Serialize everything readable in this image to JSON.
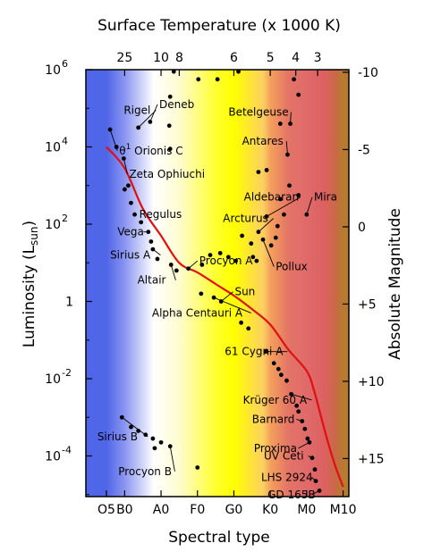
{
  "chart_data": {
    "type": "scatter",
    "title": "",
    "top_axis": {
      "title": "Surface Temperature (x 1000 K)",
      "ticks": [
        {
          "label": "25",
          "type": "B0"
        },
        {
          "label": "10",
          "type": "A0"
        },
        {
          "label": "8",
          "type": "A5"
        },
        {
          "label": "6",
          "type": "G0"
        },
        {
          "label": "5",
          "type": "K0"
        },
        {
          "label": "4",
          "type": "K7"
        },
        {
          "label": "3",
          "type": "M3"
        }
      ]
    },
    "bottom_axis": {
      "title": "Spectral type",
      "ticks": [
        "O5",
        "B0",
        "A0",
        "F0",
        "G0",
        "K0",
        "M0",
        "M10"
      ]
    },
    "left_axis": {
      "title": "Luminosity (L",
      "title_subscript": "sun",
      "title_close": ")",
      "scale": "log",
      "ylim_log10": [
        -5,
        6
      ],
      "ticks": [
        {
          "mantissa": "10",
          "exp": "6",
          "log10": 6
        },
        {
          "mantissa": "10",
          "exp": "4",
          "log10": 4
        },
        {
          "mantissa": "10",
          "exp": "2",
          "log10": 2
        },
        {
          "mantissa": "1",
          "exp": "",
          "log10": 0
        },
        {
          "mantissa": "10",
          "exp": "-2",
          "log10": -2
        },
        {
          "mantissa": "10",
          "exp": "-4",
          "log10": -4
        }
      ]
    },
    "right_axis": {
      "title": "Absolute Magnitude",
      "ticks": [
        {
          "label": "-10",
          "mag": -10
        },
        {
          "label": "-5",
          "mag": -5
        },
        {
          "label": "0",
          "mag": 0
        },
        {
          "label": "+5",
          "mag": 5
        },
        {
          "label": "+10",
          "mag": 10
        },
        {
          "label": "+15",
          "mag": 15
        }
      ]
    },
    "background_gradient": [
      {
        "type": "O5",
        "color": "#5066e8"
      },
      {
        "type": "B0",
        "color": "#8a95f0"
      },
      {
        "type": "B8",
        "color": "#ffffff"
      },
      {
        "type": "A5",
        "color": "#fffbd0"
      },
      {
        "type": "F5",
        "color": "#ffff30"
      },
      {
        "type": "G0",
        "color": "#ffff00"
      },
      {
        "type": "G8",
        "color": "#fcd060"
      },
      {
        "type": "K0",
        "color": "#f4a05c"
      },
      {
        "type": "K5",
        "color": "#e37466"
      },
      {
        "type": "M0",
        "color": "#e06a6a"
      },
      {
        "type": "M5",
        "color": "#dd6060"
      },
      {
        "type": "M8",
        "color": "#c86a46"
      },
      {
        "type": "M10",
        "color": "#b87a30"
      }
    ],
    "main_sequence_color": "#e01010",
    "main_sequence": [
      {
        "type": "O5",
        "logL": 4.0
      },
      {
        "type": "B0",
        "logL": 3.45
      },
      {
        "type": "B5",
        "logL": 2.4
      },
      {
        "type": "A0",
        "logL": 1.7
      },
      {
        "type": "A5",
        "logL": 1.0
      },
      {
        "type": "F0",
        "logL": 0.75
      },
      {
        "type": "F5",
        "logL": 0.45
      },
      {
        "type": "G0",
        "logL": 0.15
      },
      {
        "type": "G5",
        "logL": -0.2
      },
      {
        "type": "K0",
        "logL": -0.6
      },
      {
        "type": "K5",
        "logL": -1.25
      },
      {
        "type": "M0",
        "logL": -1.8
      },
      {
        "type": "M2",
        "logL": -2.3
      },
      {
        "type": "M4",
        "logL": -3.0
      },
      {
        "type": "M6",
        "logL": -3.7
      },
      {
        "type": "M8",
        "logL": -4.3
      },
      {
        "type": "M10",
        "logL": -4.8
      }
    ],
    "stars": [
      {
        "x": 0.2,
        "y": 4.45,
        "label": "θ1 Orionis C",
        "label_parts": [
          "θ",
          "1",
          " Orionis C"
        ],
        "label_x": 0.7,
        "label_y": 3.9,
        "leader": true
      },
      {
        "x": 0.55,
        "y": 4.0,
        "label": "",
        "leader": false
      },
      {
        "x": 0.95,
        "y": 3.7,
        "label": "Zeta Ophiuchi",
        "label_x": 1.25,
        "label_y": 3.3,
        "leader": true
      },
      {
        "x": 1.75,
        "y": 4.5,
        "label": "Rigel",
        "label_x": 0.95,
        "label_y": 4.95,
        "leader": true
      },
      {
        "x": 2.4,
        "y": 4.65,
        "label": "Deneb",
        "label_x": 2.9,
        "label_y": 5.1,
        "leader": true
      },
      {
        "x": 1.0,
        "y": 2.9,
        "label": "",
        "leader": false
      },
      {
        "x": 1.2,
        "y": 3.0,
        "label": "",
        "leader": false
      },
      {
        "x": 1.35,
        "y": 2.55,
        "label": "",
        "leader": false
      },
      {
        "x": 1.55,
        "y": 2.25,
        "label": "Regulus",
        "label_x": 1.8,
        "label_y": 2.25,
        "leader": false
      },
      {
        "x": 1.9,
        "y": 2.05,
        "label": "",
        "leader": false
      },
      {
        "x": 2.3,
        "y": 1.8,
        "label": "Vega",
        "label_x": 0.6,
        "label_y": 1.8,
        "leader": true
      },
      {
        "x": 2.55,
        "y": 1.35,
        "label": "Sirius A",
        "label_x": 0.2,
        "label_y": 1.2,
        "leader": true
      },
      {
        "x": 2.45,
        "y": 1.55,
        "label": "",
        "leader": false
      },
      {
        "x": 2.8,
        "y": 1.1,
        "label": "",
        "leader": false
      },
      {
        "x": 3.55,
        "y": 0.95,
        "label": "Altair",
        "label_x": 1.7,
        "label_y": 0.55,
        "leader": true
      },
      {
        "x": 3.85,
        "y": 0.8,
        "label": "",
        "leader": false
      },
      {
        "x": 4.5,
        "y": 0.85,
        "label": "Procyon A",
        "label_x": 5.1,
        "label_y": 1.05,
        "leader": true
      },
      {
        "x": 5.2,
        "y": 0.2,
        "label": "",
        "leader": false
      },
      {
        "x": 5.9,
        "y": 0.1,
        "label": "Alpha Centauri A",
        "label_x": 2.5,
        "label_y": -0.3,
        "leader": true
      },
      {
        "x": 6.3,
        "y": 0.0,
        "label": "Sun",
        "label_x": 7.05,
        "label_y": 0.25,
        "leader": true
      },
      {
        "x": 7.4,
        "y": -0.55,
        "label": "",
        "leader": false
      },
      {
        "x": 7.8,
        "y": -0.7,
        "label": "",
        "leader": false
      },
      {
        "x": 8.75,
        "y": -1.3,
        "label": "61 Cygni A",
        "label_x": 6.5,
        "label_y": -1.3,
        "leader": true
      },
      {
        "x": 9.2,
        "y": -1.6,
        "label": "",
        "leader": false
      },
      {
        "x": 9.6,
        "y": -1.9,
        "label": "",
        "leader": false
      },
      {
        "x": 9.9,
        "y": -2.05,
        "label": "",
        "leader": false
      },
      {
        "x": 10.15,
        "y": -2.4,
        "label": "Krüger 60 A",
        "label_x": 7.5,
        "label_y": -2.55,
        "leader": true
      },
      {
        "x": 10.45,
        "y": -2.7,
        "label": "",
        "leader": false
      },
      {
        "x": 10.75,
        "y": -3.1,
        "label": "Barnard",
        "label_x": 8.0,
        "label_y": -3.05,
        "leader": true
      },
      {
        "x": 10.9,
        "y": -3.3,
        "label": "",
        "leader": false
      },
      {
        "x": 11.15,
        "y": -3.65,
        "label": "Proxima",
        "label_x": 8.1,
        "label_y": -3.8,
        "leader": true
      },
      {
        "x": 11.3,
        "y": -4.05,
        "label": "UV Ceti",
        "label_x": 8.65,
        "label_y": -4.0,
        "leader": true
      },
      {
        "x": 11.45,
        "y": -4.35,
        "label": "",
        "leader": false
      },
      {
        "x": 11.5,
        "y": -4.65,
        "label": "LHS 2924",
        "label_x": 8.5,
        "label_y": -4.55,
        "leader": true
      },
      {
        "x": 11.7,
        "y": -4.9,
        "label": "GD 165B",
        "label_x": 8.85,
        "label_y": -5.0,
        "leader": true
      },
      {
        "x": 11.05,
        "y": -3.55,
        "label": "",
        "leader": false
      },
      {
        "x": 10.55,
        "y": -2.85,
        "label": "",
        "leader": false
      },
      {
        "x": 9.45,
        "y": -1.75,
        "label": "",
        "leader": false
      },
      {
        "x": 3.7,
        "y": 5.95,
        "label": "",
        "leader": false
      },
      {
        "x": 5.05,
        "y": 5.75,
        "label": "",
        "leader": false
      },
      {
        "x": 6.1,
        "y": 5.75,
        "label": "",
        "leader": false
      },
      {
        "x": 7.25,
        "y": 5.95,
        "label": "",
        "leader": false
      },
      {
        "x": 10.3,
        "y": 5.75,
        "label": "",
        "leader": false
      },
      {
        "x": 10.55,
        "y": 5.35,
        "label": "",
        "leader": false
      },
      {
        "x": 3.5,
        "y": 5.3,
        "label": "",
        "leader": false
      },
      {
        "x": 3.45,
        "y": 4.55,
        "label": "",
        "leader": false
      },
      {
        "x": 3.5,
        "y": 3.95,
        "label": "",
        "leader": false
      },
      {
        "x": 9.55,
        "y": 4.6,
        "label": "",
        "leader": false
      },
      {
        "x": 10.1,
        "y": 4.6,
        "label": "Betelgeuse",
        "label_x": 6.7,
        "label_y": 4.9,
        "leader": true
      },
      {
        "x": 9.95,
        "y": 3.8,
        "label": "Antares",
        "label_x": 7.45,
        "label_y": 4.15,
        "leader": true
      },
      {
        "x": 8.35,
        "y": 3.35,
        "label": "",
        "leader": false
      },
      {
        "x": 8.8,
        "y": 3.4,
        "label": "",
        "leader": false
      },
      {
        "x": 10.05,
        "y": 3.0,
        "label": "",
        "leader": false
      },
      {
        "x": 10.55,
        "y": 2.75,
        "label": "",
        "leader": false
      },
      {
        "x": 11.0,
        "y": 2.25,
        "label": "Mira",
        "label_x": 11.4,
        "label_y": 2.7,
        "leader": true
      },
      {
        "x": 9.55,
        "y": 2.65,
        "label": "",
        "leader": false
      },
      {
        "x": 9.75,
        "y": 2.25,
        "label": "",
        "leader": false
      },
      {
        "x": 8.8,
        "y": 2.2,
        "label": "Aldebaran",
        "label_x": 7.55,
        "label_y": 2.7,
        "leader": true
      },
      {
        "x": 9.4,
        "y": 1.95,
        "label": "",
        "leader": false
      },
      {
        "x": 8.35,
        "y": 1.8,
        "label": "Arcturus",
        "label_x": 6.4,
        "label_y": 2.15,
        "leader": true
      },
      {
        "x": 8.6,
        "y": 1.6,
        "label": "Pollux",
        "label_x": 9.3,
        "label_y": 0.9,
        "leader": true
      },
      {
        "x": 9.05,
        "y": 1.45,
        "label": "",
        "leader": false
      },
      {
        "x": 9.3,
        "y": 1.65,
        "label": "",
        "leader": false
      },
      {
        "x": 7.45,
        "y": 1.7,
        "label": "",
        "leader": false
      },
      {
        "x": 7.95,
        "y": 1.5,
        "label": "",
        "leader": false
      },
      {
        "x": 7.1,
        "y": 1.05,
        "label": "",
        "leader": false
      },
      {
        "x": 6.7,
        "y": 1.15,
        "label": "",
        "leader": false
      },
      {
        "x": 6.25,
        "y": 1.25,
        "label": "",
        "leader": false
      },
      {
        "x": 5.7,
        "y": 1.2,
        "label": "",
        "leader": false
      },
      {
        "x": 8.05,
        "y": 1.15,
        "label": "",
        "leader": false
      },
      {
        "x": 8.25,
        "y": 1.05,
        "label": "",
        "leader": false
      },
      {
        "x": 5.25,
        "y": 0.95,
        "label": "",
        "leader": false
      },
      {
        "x": 0.85,
        "y": -3.0,
        "label": "Sirius B",
        "label_x": -0.5,
        "label_y": -3.5,
        "leader": true
      },
      {
        "x": 1.35,
        "y": -3.25,
        "label": "",
        "leader": false
      },
      {
        "x": 1.75,
        "y": -3.35,
        "label": "",
        "leader": false
      },
      {
        "x": 2.15,
        "y": -3.45,
        "label": "",
        "leader": false
      },
      {
        "x": 2.55,
        "y": -3.55,
        "label": "",
        "leader": false
      },
      {
        "x": 2.65,
        "y": -3.8,
        "label": "",
        "leader": false
      },
      {
        "x": 3.0,
        "y": -3.65,
        "label": "",
        "leader": false
      },
      {
        "x": 3.5,
        "y": -3.75,
        "label": "Procyon B",
        "label_x": 0.65,
        "label_y": -4.4,
        "leader": true
      },
      {
        "x": 5.0,
        "y": -4.3,
        "label": "",
        "leader": false
      }
    ]
  }
}
